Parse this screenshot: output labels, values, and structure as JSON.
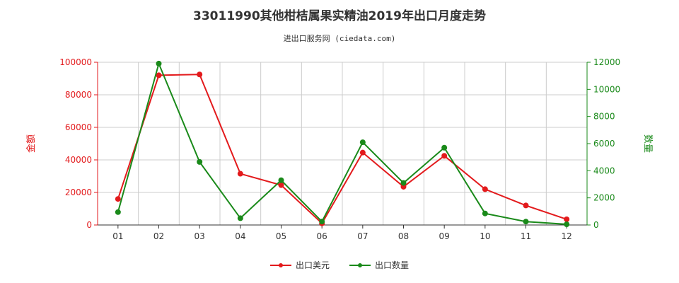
{
  "chart_data": {
    "type": "line",
    "title": "33011990其他柑桔属果实精油2019年出口月度走势",
    "subtitle": "进出口服务网 (ciedata.com)",
    "categories": [
      "01",
      "02",
      "03",
      "04",
      "05",
      "06",
      "07",
      "08",
      "09",
      "10",
      "11",
      "12"
    ],
    "ylabel_left": "金额",
    "ylabel_right": "数量",
    "ylim_left": [
      0,
      100000
    ],
    "ylim_right": [
      0,
      12000
    ],
    "yticks_left": [
      "0",
      "20000",
      "40000",
      "60000",
      "80000",
      "100000"
    ],
    "yticks_right": [
      "0",
      "2000",
      "4000",
      "6000",
      "8000",
      "10000",
      "12000"
    ],
    "grid": true,
    "legend_position": "bottom",
    "series": [
      {
        "name": "出口美元",
        "axis": "left",
        "color": "#e31a1c",
        "values": [
          16000,
          92000,
          92500,
          31500,
          24500,
          1000,
          44500,
          23500,
          42500,
          22000,
          12000,
          3500
        ]
      },
      {
        "name": "出口数量",
        "axis": "right",
        "color": "#1a8a1a",
        "values": [
          950,
          11900,
          4650,
          500,
          3300,
          250,
          6100,
          3100,
          5700,
          850,
          250,
          50
        ]
      }
    ]
  },
  "colors": {
    "left_axis": "#e31a1c",
    "right_axis": "#1a8a1a",
    "grid": "#cccccc",
    "axis": "#333333"
  }
}
